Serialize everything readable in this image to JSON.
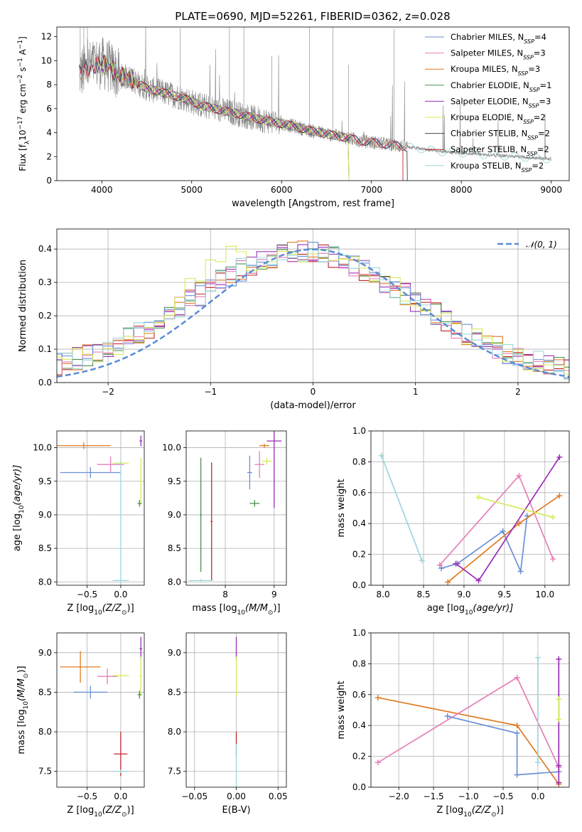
{
  "figure_title": "PLATE=0690, MJD=52261, FIBERID=0362, z=0.028",
  "colors": {
    "gray": "#808080",
    "chabrier_miles": "#6b8fd6",
    "salpeter_miles": "#e67fb8",
    "kroupa_miles": "#e07b20",
    "chabrier_elodie": "#4d8f4d",
    "salpeter_elodie": "#9a2eb8",
    "kroupa_elodie": "#d4ec5a",
    "chabrier_stelib": "#444444",
    "salpeter_stelib": "#c0262a",
    "kroupa_stelib": "#9cd6dc",
    "normal_curve": "#5b8bd6"
  },
  "chart_data": [
    {
      "id": "spectrum",
      "type": "line",
      "title": "PLATE=0690, MJD=52261, FIBERID=0362, z=0.028",
      "xlabel": "wavelength [Angstrom, rest frame]",
      "ylabel": "Flux [f_λ 10^-17 erg cm^-2 s^-1 A^-1]",
      "xlim": [
        3500,
        9200
      ],
      "ylim": [
        0,
        12.8
      ],
      "xticks": [
        4000,
        5000,
        6000,
        7000,
        8000,
        9000
      ],
      "yticks": [
        0,
        2,
        4,
        6,
        8,
        10,
        12
      ],
      "legend_position": "top-right",
      "legend": [
        "Chabrier MILES, N_SSP=4",
        "Salpeter MILES, N_SSP=3",
        "Kroupa MILES, N_SSP=3",
        "Chabrier ELODIE, N_SSP=1",
        "Salpeter ELODIE, N_SSP=3",
        "Kroupa ELODIE, N_SSP=2",
        "Chabrier STELIB, N_SSP=2",
        "Salpeter STELIB, N_SSP=2",
        "Kroupa STELIB, N_SSP=2"
      ],
      "continuum_x": [
        3750,
        3900,
        4000,
        4100,
        4200,
        4300,
        4400,
        4500,
        4700,
        4900,
        5100,
        5300,
        5500,
        5700,
        5900,
        6100,
        6300,
        6500,
        6700,
        6900,
        7100,
        7300,
        7400,
        7600,
        7800,
        8000,
        8200,
        8400,
        8600,
        8800,
        9000
      ],
      "continuum_y": [
        8.9,
        9.6,
        9.8,
        9.4,
        8.7,
        8.6,
        8.1,
        7.7,
        7.3,
        6.9,
        6.3,
        5.9,
        5.6,
        5.2,
        4.9,
        4.6,
        4.2,
        3.9,
        3.6,
        3.3,
        3.1,
        2.9,
        2.8,
        2.6,
        2.4,
        2.3,
        2.2,
        2.1,
        2.0,
        1.9,
        1.8
      ]
    },
    {
      "id": "residuals",
      "type": "line",
      "xlabel": "(data-model)/error",
      "ylabel": "Normed distribution",
      "xlim": [
        -2.5,
        2.5
      ],
      "ylim": [
        0,
        0.46
      ],
      "xticks": [
        -2,
        -1,
        0,
        1,
        2
      ],
      "yticks": [
        0.0,
        0.1,
        0.2,
        0.3,
        0.4
      ],
      "legend": [
        "𝒩(0, 1)"
      ],
      "legend_position": "top-right",
      "normal_mean": 0,
      "normal_sigma": 1
    },
    {
      "id": "age_vs_z",
      "type": "scatter",
      "xlabel": "Z [log10(Z/Z☉)]",
      "ylabel": "age  [log10(age/yr)]",
      "xlim": [
        -0.95,
        0.35
      ],
      "ylim": [
        7.95,
        10.25
      ],
      "xticks": [
        -0.5,
        0.0
      ],
      "yticks": [
        8.0,
        8.5,
        9.0,
        9.5,
        10.0
      ],
      "points": [
        {
          "series": "kroupa_miles",
          "x": -0.55,
          "y": 10.03,
          "xerr": 0.4,
          "yerr": 0.05
        },
        {
          "series": "chabrier_miles",
          "x": -0.45,
          "y": 9.63,
          "xerr": 0.45,
          "yerr": 0.08
        },
        {
          "series": "salpeter_miles",
          "x": -0.15,
          "y": 9.75,
          "xerr": 0.2,
          "yerr": 0.12
        },
        {
          "series": "kroupa_elodie",
          "x": 0.0,
          "y": 9.77,
          "xerr": 0.12,
          "yerr": 0.02
        },
        {
          "series": "kroupa_stelib",
          "x": 0.0,
          "y": 8.02,
          "xerr": 0.12,
          "yerr": 1.8
        },
        {
          "series": "salpeter_elodie",
          "x": 0.3,
          "y": 10.1,
          "xerr": 0.02,
          "yerr": 0.08
        },
        {
          "series": "kroupa_elodie",
          "x": 0.3,
          "y": 9.5,
          "xerr": 0.02,
          "yerr": 0.35
        },
        {
          "series": "chabrier_elodie",
          "x": 0.28,
          "y": 9.17,
          "xerr": 0.03,
          "yerr": 0.05
        }
      ]
    },
    {
      "id": "age_vs_mass",
      "type": "scatter",
      "xlabel": "mass [log10(M/M☉)]",
      "ylabel": "",
      "xlim": [
        7.2,
        9.25
      ],
      "ylim": [
        7.95,
        10.25
      ],
      "xticks": [
        8,
        9
      ],
      "yticks": [
        8.0,
        8.5,
        9.0,
        9.5,
        10.0
      ],
      "points": [
        {
          "series": "chabrier_elodie",
          "x": 7.5,
          "y": 9.0,
          "xerr": 0.02,
          "yerr": 0.85
        },
        {
          "series": "salpeter_stelib",
          "x": 7.72,
          "y": 8.9,
          "xerr": 0.02,
          "yerr": 0.88
        },
        {
          "series": "kroupa_stelib",
          "x": 7.5,
          "y": 8.02,
          "xerr": 0.25,
          "yerr": 0.02
        },
        {
          "series": "chabrier_miles",
          "x": 8.5,
          "y": 9.63,
          "xerr": 0.05,
          "yerr": 0.25
        },
        {
          "series": "chabrier_elodie",
          "x": 8.6,
          "y": 9.17,
          "xerr": 0.1,
          "yerr": 0.05
        },
        {
          "series": "salpeter_miles",
          "x": 8.7,
          "y": 9.75,
          "xerr": 0.1,
          "yerr": 0.2
        },
        {
          "series": "kroupa_miles",
          "x": 8.8,
          "y": 10.03,
          "xerr": 0.1,
          "yerr": 0.03
        },
        {
          "series": "salpeter_elodie",
          "x": 9.0,
          "y": 10.1,
          "xerr": 0.15,
          "yerr": 1.0
        },
        {
          "series": "kroupa_elodie",
          "x": 8.85,
          "y": 9.8,
          "xerr": 0.1,
          "yerr": 0.05
        }
      ]
    },
    {
      "id": "weight_vs_age",
      "type": "line",
      "xlabel": "age  [log10(age/yr)]",
      "ylabel": "mass weight",
      "xlim": [
        7.85,
        10.3
      ],
      "ylim": [
        0,
        1.0
      ],
      "xticks": [
        8.0,
        8.5,
        9.0,
        9.5,
        10.0
      ],
      "yticks": [
        0.0,
        0.2,
        0.4,
        0.6,
        0.8,
        1.0
      ],
      "series": [
        {
          "key": "kroupa_stelib",
          "x": [
            7.98,
            8.48
          ],
          "y": [
            0.84,
            0.16
          ]
        },
        {
          "key": "chabrier_miles",
          "x": [
            8.72,
            8.92,
            9.48,
            9.7,
            9.78
          ],
          "y": [
            0.11,
            0.14,
            0.35,
            0.09,
            0.45
          ]
        },
        {
          "key": "salpeter_miles",
          "x": [
            8.7,
            9.68,
            10.1
          ],
          "y": [
            0.13,
            0.71,
            0.17
          ]
        },
        {
          "key": "kroupa_miles",
          "x": [
            8.8,
            9.68,
            10.18
          ],
          "y": [
            0.02,
            0.4,
            0.58
          ]
        },
        {
          "key": "salpeter_elodie",
          "x": [
            8.9,
            9.18,
            10.18
          ],
          "y": [
            0.14,
            0.03,
            0.83
          ]
        },
        {
          "key": "kroupa_elodie",
          "x": [
            9.18,
            10.1
          ],
          "y": [
            0.57,
            0.44
          ]
        }
      ]
    },
    {
      "id": "mass_vs_z",
      "type": "scatter",
      "xlabel": "Z [log10(Z/Z☉)]",
      "ylabel": "mass [log10(M/M☉)]",
      "xlim": [
        -0.95,
        0.35
      ],
      "ylim": [
        7.3,
        9.25
      ],
      "xticks": [
        -0.5,
        0.0
      ],
      "yticks": [
        7.5,
        8.0,
        8.5,
        9.0
      ],
      "points": [
        {
          "series": "kroupa_miles",
          "x": -0.6,
          "y": 8.82,
          "xerr": 0.3,
          "yerr": 0.2
        },
        {
          "series": "chabrier_miles",
          "x": -0.45,
          "y": 8.5,
          "xerr": 0.25,
          "yerr": 0.08
        },
        {
          "series": "salpeter_miles",
          "x": -0.2,
          "y": 8.7,
          "xerr": 0.15,
          "yerr": 0.1
        },
        {
          "series": "kroupa_elodie",
          "x": 0.0,
          "y": 8.71,
          "xerr": 0.12,
          "yerr": 0.02
        },
        {
          "series": "salpeter_stelib",
          "x": 0.0,
          "y": 7.72,
          "xerr": 0.1,
          "yerr": 0.28
        },
        {
          "series": "kroupa_stelib",
          "x": 0.0,
          "y": 7.5,
          "xerr": 0.12,
          "yerr": 0.02
        },
        {
          "series": "salpeter_elodie",
          "x": 0.3,
          "y": 9.05,
          "xerr": 0.02,
          "yerr": 0.15
        },
        {
          "series": "kroupa_elodie",
          "x": 0.3,
          "y": 8.7,
          "xerr": 0.02,
          "yerr": 0.25
        },
        {
          "series": "chabrier_elodie",
          "x": 0.28,
          "y": 8.47,
          "xerr": 0.03,
          "yerr": 0.05
        }
      ]
    },
    {
      "id": "ebv",
      "type": "scatter",
      "xlabel": "E(B-V)",
      "ylabel": "",
      "xlim": [
        -0.06,
        0.06
      ],
      "ylim": [
        7.3,
        9.25
      ],
      "xticks": [
        -0.05,
        0.0,
        0.05
      ],
      "xticklabels": [
        "−0.05",
        "0.00",
        "0.05"
      ],
      "yticks": [
        7.5,
        8.0,
        8.5,
        9.0
      ],
      "points": [
        {
          "series": "salpeter_elodie",
          "x": 0.0,
          "y": 9.05,
          "xerr": 0,
          "yerr": 0.15
        },
        {
          "series": "kroupa_elodie",
          "x": 0.0,
          "y": 8.7,
          "xerr": 0,
          "yerr": 0.25
        },
        {
          "series": "salpeter_stelib",
          "x": 0.0,
          "y": 7.85,
          "xerr": 0,
          "yerr": 0.15
        },
        {
          "series": "kroupa_stelib",
          "x": 0.0,
          "y": 7.55,
          "xerr": 0,
          "yerr": 0.3
        }
      ]
    },
    {
      "id": "weight_vs_z",
      "type": "line",
      "xlabel": "Z [log10(Z/Z☉)]",
      "ylabel": "mass weight",
      "xlim": [
        -2.4,
        0.45
      ],
      "ylim": [
        0,
        1.0
      ],
      "xticks": [
        -2.0,
        -1.5,
        -1.0,
        -0.5,
        0.0
      ],
      "yticks": [
        0.0,
        0.2,
        0.4,
        0.6,
        0.8,
        1.0
      ],
      "series": [
        {
          "key": "kroupa_miles",
          "x": [
            -2.3,
            -0.3,
            0.3
          ],
          "y": [
            0.58,
            0.4,
            0.02
          ]
        },
        {
          "key": "salpeter_miles",
          "x": [
            -2.3,
            -0.3,
            0.3
          ],
          "y": [
            0.16,
            0.71,
            0.13
          ]
        },
        {
          "key": "chabrier_miles",
          "x": [
            -1.3,
            -0.3,
            -0.3,
            0.3
          ],
          "y": [
            0.46,
            0.35,
            0.08,
            0.1
          ]
        },
        {
          "key": "kroupa_stelib",
          "x": [
            0.0,
            0.0
          ],
          "y": [
            0.84,
            0.16
          ]
        },
        {
          "key": "salpeter_elodie",
          "x": [
            0.3,
            0.3,
            0.3
          ],
          "y": [
            0.83,
            0.14,
            0.03
          ]
        },
        {
          "key": "kroupa_elodie",
          "x": [
            0.3,
            0.3
          ],
          "y": [
            0.57,
            0.44
          ]
        }
      ]
    }
  ]
}
